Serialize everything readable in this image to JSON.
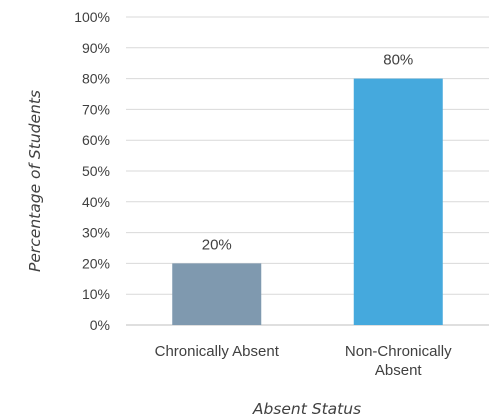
{
  "chart_data": {
    "type": "bar",
    "title": "",
    "xlabel": "Absent Status",
    "ylabel": "Percentage of Students",
    "categories": [
      [
        "Chronically Absent"
      ],
      [
        "Non-Chronically",
        "Absent"
      ]
    ],
    "values": [
      20,
      80
    ],
    "data_labels": [
      "20%",
      "80%"
    ],
    "colors": [
      "#7f99af",
      "#45a9dd"
    ],
    "ylim": [
      0,
      100
    ],
    "yticks": [
      "0%",
      "10%",
      "20%",
      "30%",
      "40%",
      "50%",
      "60%",
      "70%",
      "80%",
      "90%",
      "100%"
    ],
    "grid": true,
    "legend": "none"
  }
}
